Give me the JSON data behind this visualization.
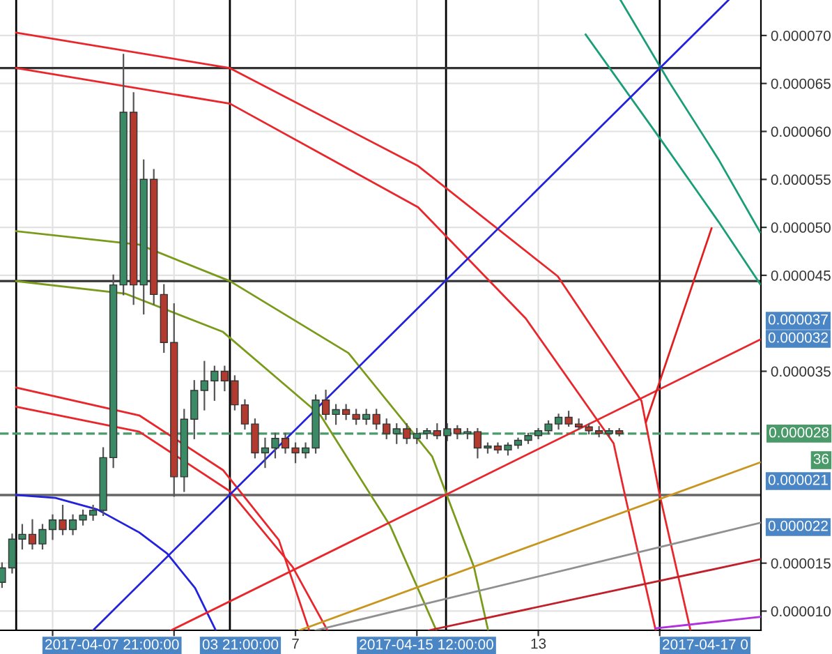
{
  "chart_data": {
    "type": "candlestick",
    "x": [
      -0.25,
      0,
      0.25,
      0.5,
      0.75,
      1,
      1.25,
      1.5,
      1.75,
      2,
      2.25,
      2.5,
      2.75,
      3,
      3.25,
      3.5,
      3.75,
      4,
      4.25,
      4.5,
      4.75,
      5,
      5.25,
      5.5,
      5.75,
      6,
      6.25,
      6.5,
      6.75,
      7,
      7.25,
      7.5,
      7.75,
      8,
      8.25,
      8.5,
      8.75,
      9,
      9.25,
      9.5,
      9.75,
      10,
      10.25,
      10.5,
      10.75,
      11,
      11.25,
      11.5,
      11.75,
      12,
      12.25,
      12.5,
      12.75,
      13,
      13.25,
      13.5,
      13.75,
      14,
      14.25,
      14.5,
      14.75,
      15
    ],
    "ohlc": [
      [
        1.3e-05,
        1.5e-05,
        1.25e-05,
        1.45e-05
      ],
      [
        1.45e-05,
        1.8e-05,
        1.4e-05,
        1.75e-05
      ],
      [
        1.75e-05,
        1.9e-05,
        1.65e-05,
        1.8e-05
      ],
      [
        1.8e-05,
        1.95e-05,
        1.65e-05,
        1.7e-05
      ],
      [
        1.7e-05,
        1.9e-05,
        1.65e-05,
        1.85e-05
      ],
      [
        1.85e-05,
        2e-05,
        1.75e-05,
        1.95e-05
      ],
      [
        1.95e-05,
        2.1e-05,
        1.8e-05,
        1.85e-05
      ],
      [
        1.85e-05,
        2e-05,
        1.8e-05,
        1.95e-05
      ],
      [
        1.95e-05,
        2.05e-05,
        1.9e-05,
        2e-05
      ],
      [
        2e-05,
        2.1e-05,
        1.95e-05,
        2.05e-05
      ],
      [
        2.05e-05,
        2.7e-05,
        2e-05,
        2.6e-05
      ],
      [
        2.6e-05,
        4.5e-05,
        2.5e-05,
        4.4e-05
      ],
      [
        4.4e-05,
        6.8e-05,
        4.3e-05,
        6.2e-05
      ],
      [
        6.2e-05,
        6.4e-05,
        4.2e-05,
        4.4e-05
      ],
      [
        4.4e-05,
        5.7e-05,
        4.1e-05,
        5.5e-05
      ],
      [
        5.5e-05,
        5.6e-05,
        4.2e-05,
        4.3e-05
      ],
      [
        4.3e-05,
        4.4e-05,
        3.7e-05,
        3.8e-05
      ],
      [
        3.8e-05,
        4.2e-05,
        2.2e-05,
        2.4e-05
      ],
      [
        2.4e-05,
        3.1e-05,
        2.25e-05,
        3e-05
      ],
      [
        3e-05,
        3.4e-05,
        2.8e-05,
        3.3e-05
      ],
      [
        3.3e-05,
        3.6e-05,
        3.1e-05,
        3.4e-05
      ],
      [
        3.4e-05,
        3.55e-05,
        3.2e-05,
        3.5e-05
      ],
      [
        3.5e-05,
        3.55e-05,
        3.3e-05,
        3.4e-05
      ],
      [
        3.4e-05,
        3.45e-05,
        3.1e-05,
        3.15e-05
      ],
      [
        3.15e-05,
        3.2e-05,
        2.9e-05,
        2.95e-05
      ],
      [
        2.95e-05,
        3e-05,
        2.6e-05,
        2.65e-05
      ],
      [
        2.65e-05,
        2.8e-05,
        2.5e-05,
        2.7e-05
      ],
      [
        2.7e-05,
        2.85e-05,
        2.6e-05,
        2.8e-05
      ],
      [
        2.8e-05,
        2.85e-05,
        2.65e-05,
        2.7e-05
      ],
      [
        2.7e-05,
        2.75e-05,
        2.55e-05,
        2.65e-05
      ],
      [
        2.65e-05,
        2.75e-05,
        2.6e-05,
        2.7e-05
      ],
      [
        2.7e-05,
        3.25e-05,
        2.65e-05,
        3.2e-05
      ],
      [
        3.2e-05,
        3.3e-05,
        3e-05,
        3.05e-05
      ],
      [
        3.05e-05,
        3.15e-05,
        2.95e-05,
        3.1e-05
      ],
      [
        3.1e-05,
        3.15e-05,
        3e-05,
        3.05e-05
      ],
      [
        3.05e-05,
        3.1e-05,
        2.95e-05,
        3e-05
      ],
      [
        3e-05,
        3.1e-05,
        2.95e-05,
        3.05e-05
      ],
      [
        3.05e-05,
        3.1e-05,
        2.9e-05,
        2.95e-05
      ],
      [
        2.95e-05,
        3e-05,
        2.8e-05,
        2.85e-05
      ],
      [
        2.85e-05,
        2.95e-05,
        2.75e-05,
        2.9e-05
      ],
      [
        2.9e-05,
        2.95e-05,
        2.75e-05,
        2.8e-05
      ],
      [
        2.8e-05,
        2.9e-05,
        2.75e-05,
        2.85e-05
      ],
      [
        2.85e-05,
        2.9e-05,
        2.8e-05,
        2.88e-05
      ],
      [
        2.88e-05,
        2.95e-05,
        2.8e-05,
        2.83e-05
      ],
      [
        2.83e-05,
        2.95e-05,
        2.78e-05,
        2.9e-05
      ],
      [
        2.9e-05,
        2.93e-05,
        2.8e-05,
        2.85e-05
      ],
      [
        2.85e-05,
        2.9e-05,
        2.8e-05,
        2.87e-05
      ],
      [
        2.87e-05,
        2.9e-05,
        2.6e-05,
        2.7e-05
      ],
      [
        2.7e-05,
        2.75e-05,
        2.65e-05,
        2.72e-05
      ],
      [
        2.72e-05,
        2.75e-05,
        2.65e-05,
        2.68e-05
      ],
      [
        2.68e-05,
        2.75e-05,
        2.63e-05,
        2.73e-05
      ],
      [
        2.73e-05,
        2.8e-05,
        2.7e-05,
        2.78e-05
      ],
      [
        2.78e-05,
        2.85e-05,
        2.75e-05,
        2.83e-05
      ],
      [
        2.83e-05,
        2.9e-05,
        2.8e-05,
        2.88e-05
      ],
      [
        2.88e-05,
        2.98e-05,
        2.85e-05,
        2.95e-05
      ],
      [
        2.95e-05,
        3.05e-05,
        2.9e-05,
        3.02e-05
      ],
      [
        3.02e-05,
        3.08e-05,
        2.93e-05,
        2.95e-05
      ],
      [
        2.95e-05,
        3e-05,
        2.9e-05,
        2.92e-05
      ],
      [
        2.92e-05,
        2.95e-05,
        2.85e-05,
        2.88e-05
      ],
      [
        2.88e-05,
        2.92e-05,
        2.82e-05,
        2.85e-05
      ],
      [
        2.85e-05,
        2.9e-05,
        2.82e-05,
        2.88e-05
      ],
      [
        2.88e-05,
        2.9e-05,
        2.83e-05,
        2.85e-05
      ]
    ],
    "series": [
      {
        "type": "line",
        "color": "#2222dd",
        "x": [
          0.1,
          1.07,
          2.1,
          3.14,
          3.83,
          4.52,
          5.03
        ],
        "values": [
          2.21e-05,
          2.18e-05,
          2.06e-05,
          1.82e-05,
          1.6e-05,
          1.24e-05,
          8e-06
        ]
      },
      {
        "type": "line",
        "color": "#e8262b",
        "x": [
          0.1,
          3.14,
          5.21,
          6.59,
          7.34
        ],
        "values": [
          3.33e-05,
          3.04e-05,
          2.47e-05,
          1.74e-05,
          8e-06
        ]
      },
      {
        "type": "line",
        "color": "#e8262b",
        "x": [
          0.1,
          3.14,
          5.38,
          6.93,
          7.79
        ],
        "values": [
          3.13e-05,
          2.87e-05,
          2.25e-05,
          1.46e-05,
          8e-06
        ]
      },
      {
        "type": "line",
        "color": "#7a9a1a",
        "x": [
          0.1,
          3.14,
          5.38,
          8.31,
          10.38,
          11.41,
          11.76
        ],
        "values": [
          4.96e-05,
          4.82e-05,
          4.44e-05,
          3.69e-05,
          2.61e-05,
          1.46e-05,
          8e-06
        ]
      },
      {
        "type": "line",
        "color": "#7a9a1a",
        "x": [
          0.1,
          2.79,
          5.21,
          7.62,
          9.34,
          10.48
        ],
        "values": [
          4.44e-05,
          4.31e-05,
          3.91e-05,
          3.04e-05,
          1.89e-05,
          8e-06
        ]
      },
      {
        "type": "line",
        "color": "#e8262b",
        "x": [
          0.1,
          5.38,
          10.03,
          13.48,
          15.55,
          16.0,
          16.76
        ],
        "values": [
          7.03e-05,
          6.66e-05,
          5.64e-05,
          4.49e-05,
          3.19e-05,
          2.21e-05,
          8e-06
        ]
      },
      {
        "type": "line",
        "color": "#e8262b",
        "x": [
          0.1,
          5.38,
          10.03,
          12.69,
          14.86,
          15.14,
          15.9
        ],
        "values": [
          6.66e-05,
          6.29e-05,
          5.21e-05,
          4.05e-05,
          2.75e-05,
          2.21e-05,
          8e-06
        ]
      },
      {
        "type": "line",
        "color": "#1a9e78",
        "x": [
          15.03,
          16.24,
          17.45,
          18.48
        ],
        "values": [
          7.37e-05,
          6.51e-05,
          5.71e-05,
          4.95e-05
        ]
      },
      {
        "type": "line",
        "color": "#1a9e78",
        "x": [
          14.17,
          16.0,
          17.45,
          18.48
        ],
        "values": [
          7.01e-05,
          5.93e-05,
          5.06e-05,
          4.41e-05
        ]
      },
      {
        "type": "line",
        "color": "#2222dd",
        "x": [
          2.0,
          17.7
        ],
        "values": [
          8e-06,
          7.37e-05
        ]
      },
      {
        "type": "line",
        "color": "#e8262b",
        "x": [
          3.93,
          18.48
        ],
        "values": [
          8e-06,
          3.83e-05
        ]
      },
      {
        "type": "line",
        "color": "#c8961e",
        "x": [
          7.1,
          18.48
        ],
        "values": [
          8e-06,
          2.55e-05
        ]
      },
      {
        "type": "line",
        "color": "#909090",
        "x": [
          7.5,
          18.48
        ],
        "values": [
          8e-06,
          1.92e-05
        ]
      },
      {
        "type": "line",
        "color": "#c0202a",
        "x": [
          10.3,
          18.48
        ],
        "values": [
          8e-06,
          1.54e-05
        ]
      },
      {
        "type": "line",
        "color": "#b030e0",
        "x": [
          15.9,
          18.48
        ],
        "values": [
          8.2e-06,
          9.4e-06
        ]
      },
      {
        "type": "line",
        "color": "#e02020",
        "x": [
          15.66,
          17.28
        ],
        "values": [
          2.97e-05,
          4.99e-05
        ]
      }
    ],
    "xlim": [
      -0.3,
      18.5
    ],
    "xticks": [
      {
        "value": 1,
        "label": null
      },
      {
        "value": 4,
        "label": null
      },
      {
        "value": 7,
        "label": "7"
      },
      {
        "value": 10,
        "label": null
      },
      {
        "value": 13,
        "label": "13"
      },
      {
        "value": 16,
        "label": null
      }
    ],
    "ylim": [
      8e-06,
      7.37e-05
    ],
    "yticks": [
      {
        "value": 1e-05,
        "label": "0.000010"
      },
      {
        "value": 1.5e-05,
        "label": "0.000015"
      },
      {
        "value": 3.5e-05,
        "label": "0.000035"
      },
      {
        "value": 4.5e-05,
        "label": "0.000045"
      },
      {
        "value": 5e-05,
        "label": "0.000050"
      },
      {
        "value": 5.5e-05,
        "label": "0.000055"
      },
      {
        "value": 6e-05,
        "label": "0.000060"
      },
      {
        "value": 6.5e-05,
        "label": "0.000065"
      },
      {
        "value": 7e-05,
        "label": "0.000070"
      }
    ],
    "ref_lines": [
      {
        "axis": "x",
        "value": 0.1,
        "color": "#000000"
      },
      {
        "axis": "x",
        "value": 5.38,
        "color": "#000000"
      },
      {
        "axis": "x",
        "value": 10.72,
        "color": "#000000"
      },
      {
        "axis": "x",
        "value": 16.0,
        "color": "#000000"
      },
      {
        "axis": "y",
        "value": 6.66e-05,
        "color": "#333333"
      },
      {
        "axis": "y",
        "value": 4.44e-05,
        "color": "#333333"
      },
      {
        "axis": "y",
        "value": 2.21e-05,
        "color": "#666666"
      },
      {
        "axis": "y",
        "value": 2.85e-05,
        "label": "0.000028",
        "color": "#4a9a6a",
        "line_style": "dashed"
      }
    ],
    "annotations": [
      "2017-04-07 21:00:00",
      "03 21:00:00",
      "2017-04-15 12:00:00",
      "2017-04-17 0",
      "0.000037",
      "0.000032",
      "0.000021",
      "0.000022",
      "36"
    ],
    "grid": true
  }
}
